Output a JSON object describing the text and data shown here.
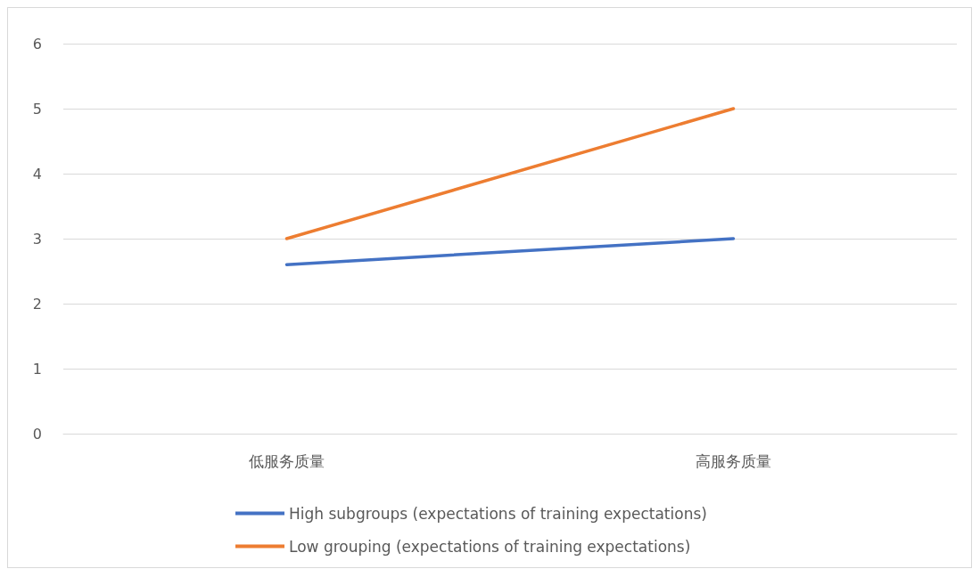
{
  "chart_data": {
    "type": "line",
    "categories": [
      "低服务质量",
      "高服务质量"
    ],
    "series": [
      {
        "name": "High subgroups (expectations of training expectations)",
        "color": "#4472c4",
        "values": [
          2.6,
          3
        ]
      },
      {
        "name": "Low grouping (expectations of training expectations)",
        "color": "#ed7d31",
        "values": [
          3,
          5
        ]
      }
    ],
    "ylim": [
      0,
      6
    ],
    "yticks": [
      0,
      1,
      2,
      3,
      4,
      5,
      6
    ],
    "grid": "y",
    "legend": "bottom",
    "marker": "none",
    "line_style": "solid"
  }
}
